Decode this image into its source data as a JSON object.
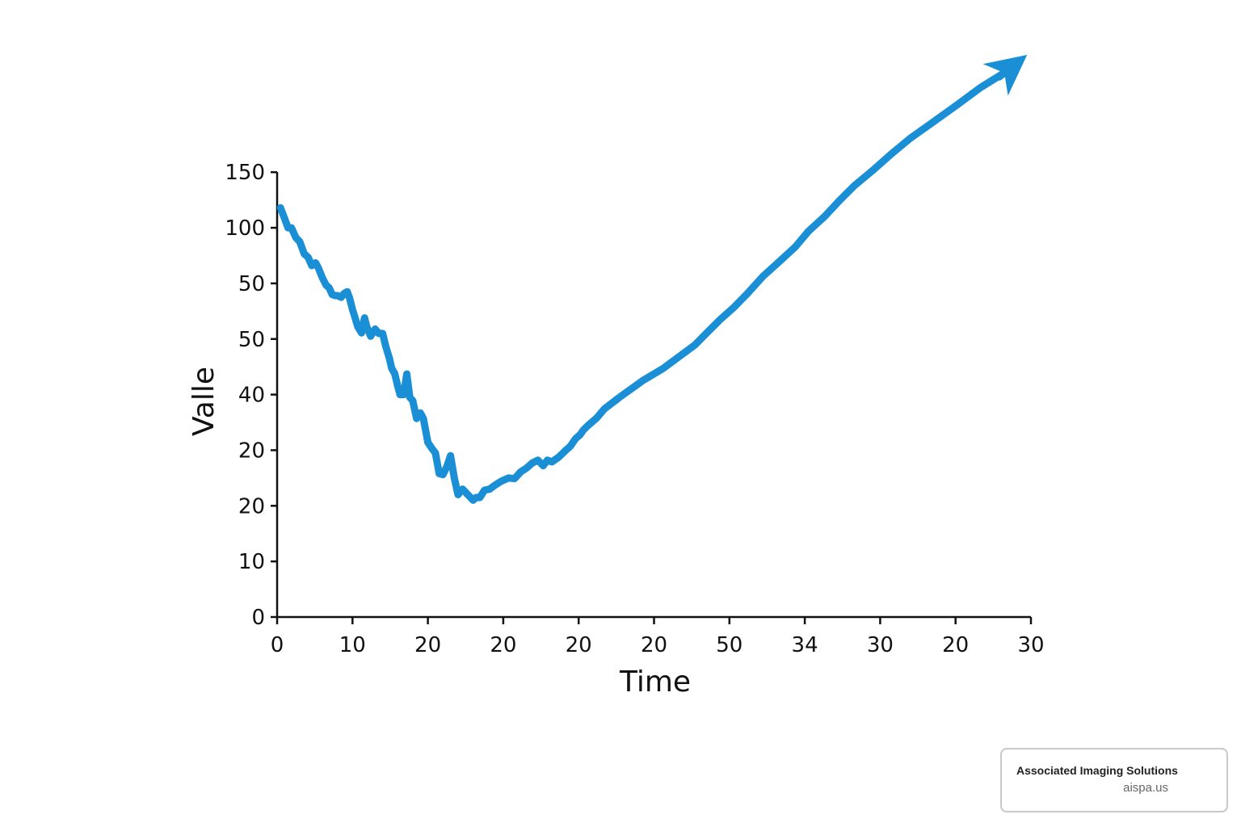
{
  "chart_data": {
    "type": "line",
    "xlabel": "Time",
    "ylabel": "Valle",
    "x_tick_labels": [
      "0",
      "10",
      "20",
      "20",
      "20",
      "20",
      "50",
      "34",
      "30",
      "20",
      "30"
    ],
    "y_tick_labels": [
      "0",
      "10",
      "20",
      "20",
      "40",
      "50",
      "50",
      "100",
      "150"
    ],
    "grid": false,
    "legend": "none",
    "series_color": "#1b8fd6",
    "end_marker": "arrow",
    "series": [
      {
        "x": [
          0.45,
          0.9,
          1.45,
          1.9,
          2.5,
          3.0,
          3.6,
          4.1,
          4.6,
          5.1,
          5.5,
          6.0,
          6.5,
          6.9,
          7.3,
          7.7,
          8.0,
          8.5,
          8.9,
          9.3,
          9.6,
          10.0,
          10.3,
          10.7,
          11.2,
          11.6,
          11.9,
          12.4,
          13.0,
          13.5,
          14.0,
          14.4,
          14.9,
          15.2,
          15.6,
          16.0,
          16.3,
          16.8,
          17.2,
          17.6,
          18.0,
          18.5,
          19.0,
          19.4,
          20.0,
          20.6,
          21.0,
          21.5,
          22.0,
          22.5,
          23.0,
          23.5,
          24.0,
          24.6,
          25.3,
          26.0,
          26.4,
          26.9,
          27.5,
          28.2,
          28.9,
          29.7,
          30.7,
          31.5,
          32.3,
          33.1,
          33.85,
          34.6,
          35.3,
          35.85,
          36.45,
          37.4,
          38.3,
          38.9,
          39.6,
          40.2,
          40.6,
          41.2,
          42.4,
          43.4,
          45.5,
          48.6,
          51.2,
          53.3,
          55.4,
          57.0,
          58.7,
          60.6,
          62.4,
          64.4,
          66.6,
          68.7,
          70.5,
          72.6,
          74.6,
          76.6,
          79.0,
          81.4,
          84.0,
          87.2,
          90.3,
          93.3,
          96.6,
          99.5
        ],
        "y": [
          7.36,
          7.2,
          7.0,
          7.0,
          6.82,
          6.75,
          6.53,
          6.47,
          6.32,
          6.37,
          6.27,
          6.1,
          5.97,
          5.92,
          5.8,
          5.78,
          5.78,
          5.75,
          5.82,
          5.85,
          5.74,
          5.53,
          5.4,
          5.22,
          5.11,
          5.38,
          5.22,
          5.05,
          5.18,
          5.1,
          5.1,
          4.87,
          4.65,
          4.47,
          4.38,
          4.15,
          4.0,
          4.0,
          4.37,
          3.95,
          3.89,
          3.57,
          3.67,
          3.57,
          3.14,
          3.02,
          2.95,
          2.58,
          2.56,
          2.7,
          2.9,
          2.5,
          2.2,
          2.3,
          2.2,
          2.1,
          2.15,
          2.15,
          2.28,
          2.3,
          2.37,
          2.44,
          2.5,
          2.49,
          2.61,
          2.68,
          2.77,
          2.82,
          2.72,
          2.82,
          2.79,
          2.88,
          3.0,
          3.07,
          3.21,
          3.28,
          3.36,
          3.44,
          3.58,
          3.74,
          3.96,
          4.26,
          4.47,
          4.68,
          4.89,
          5.11,
          5.34,
          5.57,
          5.82,
          6.12,
          6.39,
          6.65,
          6.94,
          7.2,
          7.49,
          7.76,
          8.03,
          8.32,
          8.61,
          8.92,
          9.22,
          9.52,
          9.8,
          10.11
        ]
      }
    ]
  },
  "attribution": {
    "name": "Associated Imaging Solutions",
    "url": "aispa.us"
  }
}
